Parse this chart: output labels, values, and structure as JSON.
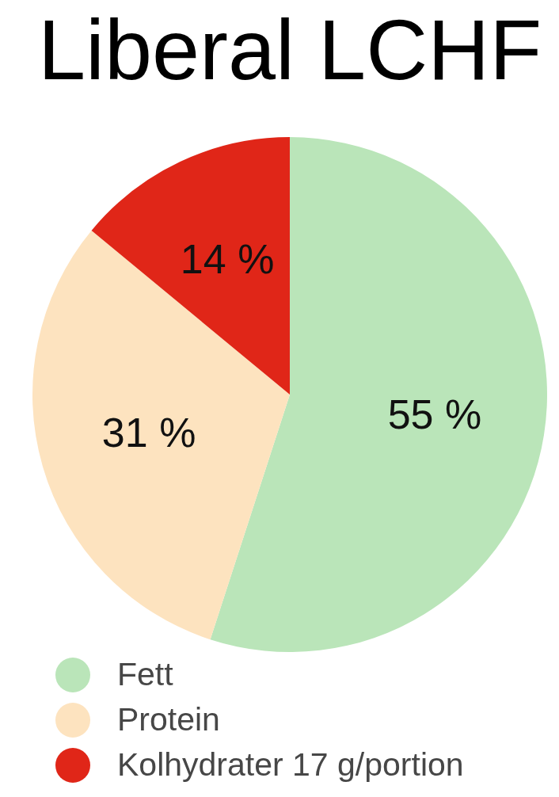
{
  "chart_data": {
    "type": "pie",
    "title": "Liberal LCHF",
    "categories": [
      "Fett",
      "Protein",
      "Kolhydrater 17 g/portion"
    ],
    "values": [
      55,
      31,
      14
    ],
    "colors": [
      "#bae5b9",
      "#fde3bf",
      "#e02618"
    ],
    "value_labels": [
      "55 %",
      "31 %",
      "14 %"
    ],
    "legend": "bottom left"
  }
}
